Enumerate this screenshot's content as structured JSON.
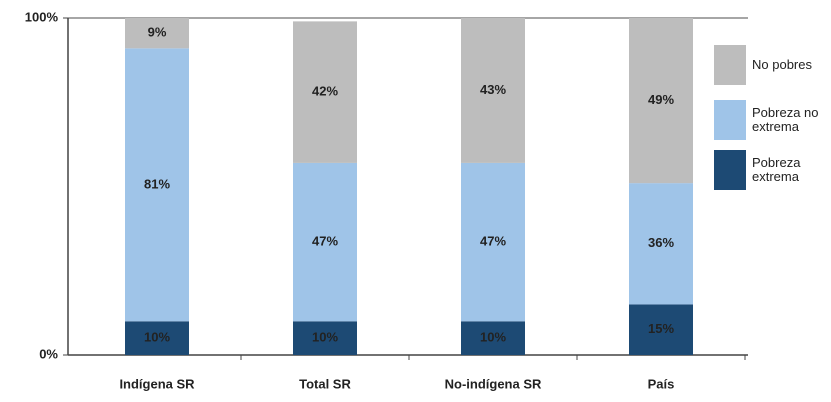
{
  "chart_data": {
    "type": "stacked_bar",
    "categories": [
      "Indígena SR",
      "Total SR",
      "No-indígena SR",
      "País"
    ],
    "series": [
      {
        "name": "Pobreza extrema",
        "color": "#1d4a74",
        "values": [
          10,
          10,
          10,
          15
        ],
        "value_labels": [
          "10%",
          "10%",
          "10%",
          "15%"
        ]
      },
      {
        "name": "Pobreza no extrema",
        "color": "#9fc4e8",
        "values": [
          81,
          47,
          47,
          36
        ],
        "value_labels": [
          "81%",
          "47%",
          "47%",
          "36%"
        ]
      },
      {
        "name": "No pobres",
        "color": "#bdbdbd",
        "values": [
          9,
          42,
          43,
          49
        ],
        "value_labels": [
          "9%",
          "42%",
          "43%",
          "49%"
        ]
      }
    ],
    "ylim": [
      0,
      100
    ],
    "yticks": [
      {
        "value": 0,
        "label": "0%"
      },
      {
        "value": 100,
        "label": "100%"
      }
    ],
    "legend": "right"
  }
}
